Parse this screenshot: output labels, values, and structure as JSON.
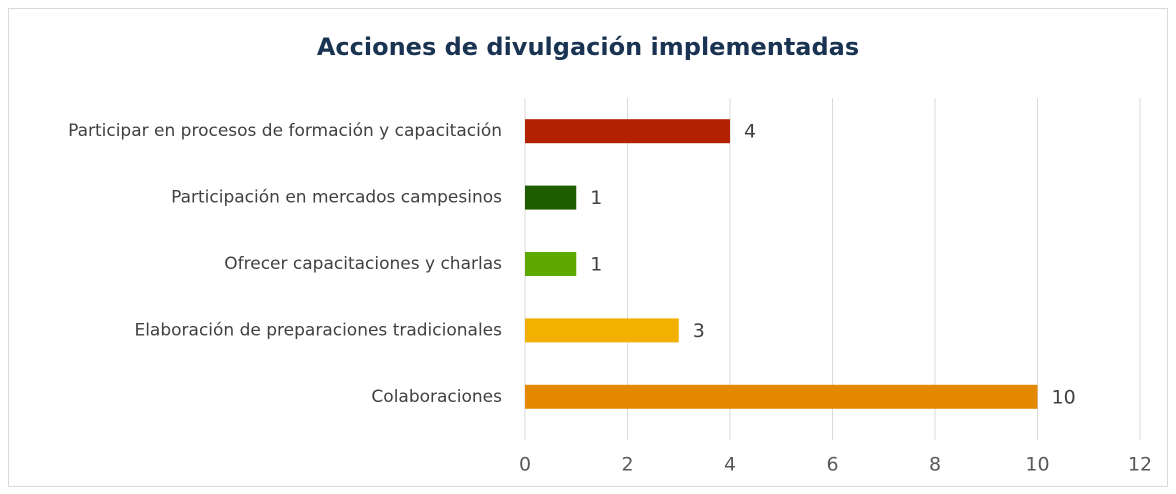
{
  "chart_data": {
    "type": "barh",
    "title": "Acciones de divulgación implementadas",
    "categories": [
      "Participar en procesos de formación y capacitación",
      "Participación en mercados campesinos",
      "Ofrecer capacitaciones y charlas",
      "Elaboración de preparaciones tradicionales",
      "Colaboraciones"
    ],
    "values": [
      4,
      1,
      1,
      3,
      10
    ],
    "colors": [
      "#b22200",
      "#1e5c00",
      "#5fa800",
      "#f2b000",
      "#e48800"
    ],
    "xlim": [
      0,
      12
    ],
    "xticks": [
      0,
      2,
      4,
      6,
      8,
      10,
      12
    ],
    "grid": true
  }
}
